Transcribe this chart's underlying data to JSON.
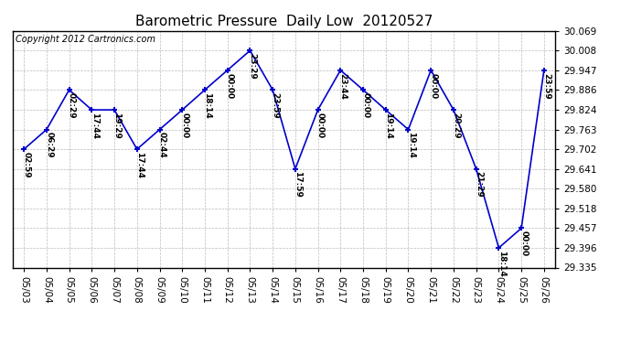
{
  "title": "Barometric Pressure  Daily Low  20120527",
  "copyright": "Copyright 2012 Cartronics.com",
  "x_labels": [
    "05/03",
    "05/04",
    "05/05",
    "05/06",
    "05/07",
    "05/08",
    "05/09",
    "05/10",
    "05/11",
    "05/12",
    "05/13",
    "05/14",
    "05/15",
    "05/16",
    "05/17",
    "05/18",
    "05/19",
    "05/20",
    "05/21",
    "05/22",
    "05/23",
    "05/24",
    "05/25",
    "05/26"
  ],
  "y_values": [
    29.702,
    29.763,
    29.886,
    29.824,
    29.824,
    29.702,
    29.763,
    29.824,
    29.886,
    29.947,
    30.008,
    29.886,
    29.641,
    29.824,
    29.947,
    29.886,
    29.824,
    29.763,
    29.947,
    29.824,
    29.641,
    29.396,
    29.457,
    29.947
  ],
  "time_labels": [
    "02:59",
    "06:29",
    "02:29",
    "17:44",
    "19:29",
    "17:44",
    "02:44",
    "00:00",
    "18:14",
    "00:00",
    "23:29",
    "23:59",
    "17:59",
    "00:00",
    "23:44",
    "00:00",
    "19:14",
    "19:14",
    "00:00",
    "20:29",
    "21:29",
    "18:14",
    "00:00",
    "23:59"
  ],
  "ylim": [
    29.335,
    30.069
  ],
  "yticks": [
    29.335,
    29.396,
    29.457,
    29.518,
    29.58,
    29.641,
    29.702,
    29.763,
    29.824,
    29.886,
    29.947,
    30.008,
    30.069
  ],
  "line_color": "#0000cc",
  "marker_color": "#0000cc",
  "bg_color": "#ffffff",
  "grid_color": "#bbbbbb",
  "title_fontsize": 11,
  "copyright_fontsize": 7,
  "label_fontsize": 6.5,
  "tick_fontsize": 7.5
}
